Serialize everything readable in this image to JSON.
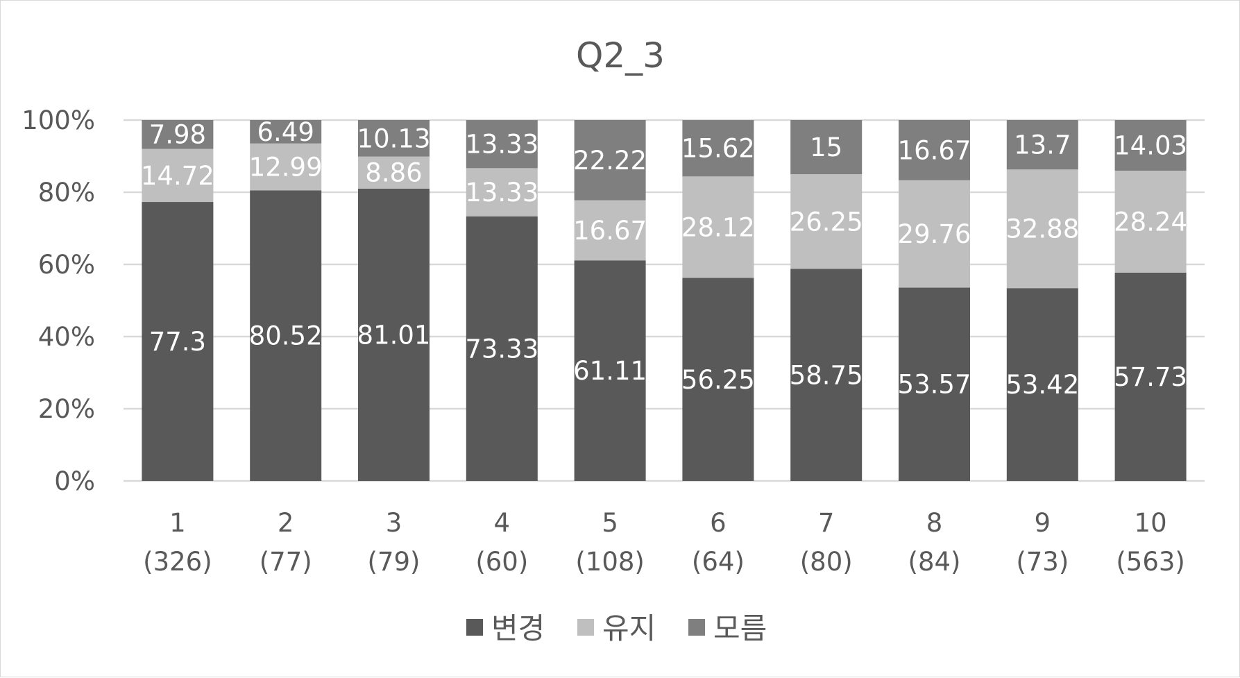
{
  "chart_data": {
    "type": "bar",
    "stacked": true,
    "title": "Q2_3",
    "ylim": [
      0,
      100
    ],
    "y_ticks": [
      "0%",
      "20%",
      "40%",
      "60%",
      "80%",
      "100%"
    ],
    "categories": [
      [
        "1",
        "(326)"
      ],
      [
        "2",
        "(77)"
      ],
      [
        "3",
        "(79)"
      ],
      [
        "4",
        "(60)"
      ],
      [
        "5",
        "(108)"
      ],
      [
        "6",
        "(64)"
      ],
      [
        "7",
        "(80)"
      ],
      [
        "8",
        "(84)"
      ],
      [
        "9",
        "(73)"
      ],
      [
        "10",
        "(563)"
      ]
    ],
    "series": [
      {
        "name": "변경",
        "color": "#595959",
        "values": [
          77.3,
          80.52,
          81.01,
          73.33,
          61.11,
          56.25,
          58.75,
          53.57,
          53.42,
          57.73
        ]
      },
      {
        "name": "유지",
        "color": "#bfbfbf",
        "values": [
          14.72,
          12.99,
          8.86,
          13.33,
          16.67,
          28.12,
          26.25,
          29.76,
          32.88,
          28.24
        ]
      },
      {
        "name": "모름",
        "color": "#7f7f7f",
        "values": [
          7.98,
          6.49,
          10.13,
          13.33,
          22.22,
          15.62,
          15,
          16.67,
          13.7,
          14.03
        ]
      }
    ],
    "grid": true,
    "legend_position": "bottom"
  }
}
